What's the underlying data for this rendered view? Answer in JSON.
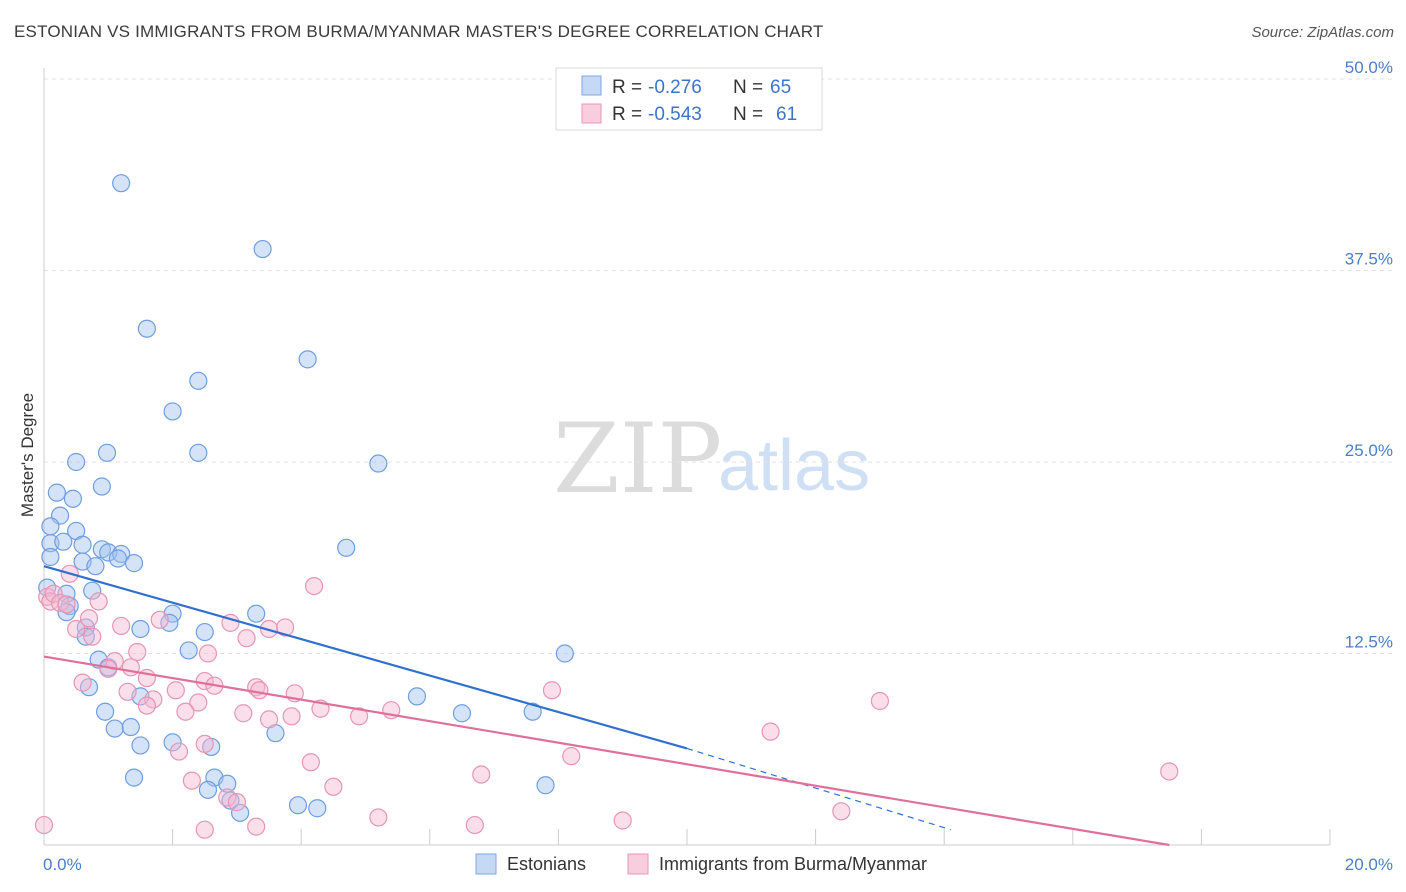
{
  "header": {
    "title": "ESTONIAN VS IMMIGRANTS FROM BURMA/MYANMAR MASTER'S DEGREE CORRELATION CHART",
    "source": "Source: ZipAtlas.com"
  },
  "watermark": {
    "zip": "ZIP",
    "atlas": "atlas"
  },
  "legend": {
    "rows": [
      {
        "r_label": "R =",
        "r_value": "-0.276",
        "n_label": "N =",
        "n_value": "65"
      },
      {
        "r_label": "R =",
        "r_value": "-0.543",
        "n_label": "N =",
        "n_value": "61"
      }
    ]
  },
  "bottom_legend": {
    "series1": "Estonians",
    "series2": "Immigrants from Burma/Myanmar"
  },
  "chart_data": {
    "type": "scatter",
    "title": "ESTONIAN VS IMMIGRANTS FROM BURMA/MYANMAR MASTER'S DEGREE CORRELATION CHART",
    "xlabel": "",
    "ylabel": "Master's Degree",
    "xlim": [
      0,
      20
    ],
    "ylim": [
      0,
      50
    ],
    "x_tick_labels": [
      "0.0%",
      "20.0%"
    ],
    "y_ticks": [
      12.5,
      25.0,
      37.5,
      50.0
    ],
    "y_tick_labels": [
      "12.5%",
      "25.0%",
      "37.5%",
      "50.0%"
    ],
    "grid": true,
    "colors": {
      "blue": "#5b8fd6",
      "blue_line": "#2f6fd0",
      "pink": "#e07fa3",
      "pink_line": "#e0709a"
    },
    "series": [
      {
        "name": "Estonians",
        "color": "#5b8fd6",
        "trend": {
          "x": [
            0,
            10
          ],
          "y": [
            18.2,
            6.3
          ],
          "dashed_to": [
            14.1,
            1.0
          ]
        },
        "points": [
          [
            1.2,
            43.2
          ],
          [
            3.4,
            38.9
          ],
          [
            1.6,
            33.7
          ],
          [
            4.1,
            31.7
          ],
          [
            2.4,
            30.3
          ],
          [
            2.0,
            28.3
          ],
          [
            0.98,
            25.6
          ],
          [
            2.4,
            25.6
          ],
          [
            0.5,
            25.0
          ],
          [
            5.2,
            24.9
          ],
          [
            0.9,
            23.4
          ],
          [
            0.2,
            23.0
          ],
          [
            0.45,
            22.6
          ],
          [
            0.25,
            21.5
          ],
          [
            0.1,
            20.8
          ],
          [
            0.5,
            20.5
          ],
          [
            0.1,
            19.7
          ],
          [
            0.3,
            19.8
          ],
          [
            0.6,
            19.6
          ],
          [
            0.9,
            19.3
          ],
          [
            1.0,
            19.1
          ],
          [
            1.2,
            19.0
          ],
          [
            1.15,
            18.7
          ],
          [
            4.7,
            19.4
          ],
          [
            0.1,
            18.8
          ],
          [
            0.6,
            18.5
          ],
          [
            1.4,
            18.4
          ],
          [
            0.8,
            18.2
          ],
          [
            0.05,
            16.8
          ],
          [
            0.35,
            16.4
          ],
          [
            0.75,
            16.6
          ],
          [
            0.4,
            15.6
          ],
          [
            0.35,
            15.2
          ],
          [
            2.0,
            15.1
          ],
          [
            3.3,
            15.1
          ],
          [
            1.95,
            14.5
          ],
          [
            0.65,
            14.2
          ],
          [
            1.5,
            14.1
          ],
          [
            2.5,
            13.9
          ],
          [
            0.65,
            13.6
          ],
          [
            2.25,
            12.7
          ],
          [
            8.1,
            12.5
          ],
          [
            0.85,
            12.1
          ],
          [
            1.0,
            11.6
          ],
          [
            0.7,
            10.3
          ],
          [
            1.5,
            9.7
          ],
          [
            5.8,
            9.7
          ],
          [
            0.95,
            8.7
          ],
          [
            6.5,
            8.6
          ],
          [
            7.6,
            8.7
          ],
          [
            1.1,
            7.6
          ],
          [
            1.35,
            7.7
          ],
          [
            3.6,
            7.3
          ],
          [
            1.5,
            6.5
          ],
          [
            2.0,
            6.7
          ],
          [
            2.6,
            6.4
          ],
          [
            1.4,
            4.4
          ],
          [
            2.65,
            4.4
          ],
          [
            2.85,
            4.0
          ],
          [
            7.8,
            3.9
          ],
          [
            2.55,
            3.6
          ],
          [
            2.9,
            2.9
          ],
          [
            3.95,
            2.6
          ],
          [
            4.25,
            2.4
          ],
          [
            3.05,
            2.1
          ]
        ]
      },
      {
        "name": "Immigrants from Burma/Myanmar",
        "color": "#e07fa3",
        "trend": {
          "x": [
            0,
            17.5
          ],
          "y": [
            12.3,
            0.0
          ]
        },
        "points": [
          [
            0.05,
            16.2
          ],
          [
            0.1,
            15.9
          ],
          [
            0.15,
            16.4
          ],
          [
            0.25,
            15.8
          ],
          [
            0.35,
            15.7
          ],
          [
            0.4,
            17.7
          ],
          [
            0.85,
            15.9
          ],
          [
            0.5,
            14.1
          ],
          [
            0.7,
            14.8
          ],
          [
            0.75,
            13.6
          ],
          [
            4.2,
            16.9
          ],
          [
            1.2,
            14.3
          ],
          [
            1.8,
            14.7
          ],
          [
            2.9,
            14.5
          ],
          [
            3.5,
            14.1
          ],
          [
            3.75,
            14.2
          ],
          [
            3.15,
            13.5
          ],
          [
            1.45,
            12.6
          ],
          [
            2.55,
            12.5
          ],
          [
            1.1,
            12.0
          ],
          [
            1.35,
            11.6
          ],
          [
            1.0,
            11.5
          ],
          [
            1.6,
            10.9
          ],
          [
            2.5,
            10.7
          ],
          [
            0.6,
            10.6
          ],
          [
            2.65,
            10.4
          ],
          [
            3.3,
            10.3
          ],
          [
            3.35,
            10.1
          ],
          [
            7.9,
            10.1
          ],
          [
            1.3,
            10.0
          ],
          [
            2.05,
            10.1
          ],
          [
            3.9,
            9.9
          ],
          [
            1.7,
            9.5
          ],
          [
            2.4,
            9.3
          ],
          [
            1.6,
            9.1
          ],
          [
            13.0,
            9.4
          ],
          [
            4.3,
            8.9
          ],
          [
            5.4,
            8.8
          ],
          [
            2.2,
            8.7
          ],
          [
            3.1,
            8.6
          ],
          [
            3.5,
            8.2
          ],
          [
            3.85,
            8.4
          ],
          [
            4.9,
            8.4
          ],
          [
            11.3,
            7.4
          ],
          [
            2.5,
            6.6
          ],
          [
            2.1,
            6.1
          ],
          [
            8.2,
            5.8
          ],
          [
            4.15,
            5.4
          ],
          [
            2.3,
            4.2
          ],
          [
            6.8,
            4.6
          ],
          [
            17.5,
            4.8
          ],
          [
            4.5,
            3.8
          ],
          [
            2.85,
            3.1
          ],
          [
            3.0,
            2.8
          ],
          [
            12.4,
            2.2
          ],
          [
            5.2,
            1.8
          ],
          [
            9.0,
            1.6
          ],
          [
            6.7,
            1.3
          ],
          [
            3.3,
            1.2
          ],
          [
            0.0,
            1.3
          ],
          [
            2.5,
            1.0
          ]
        ]
      }
    ]
  }
}
